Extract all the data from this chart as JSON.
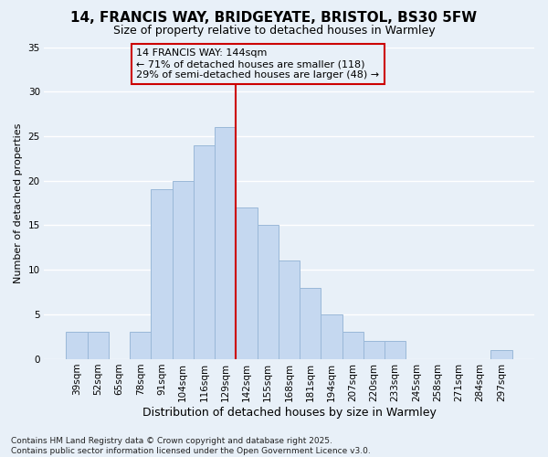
{
  "title1": "14, FRANCIS WAY, BRIDGEYATE, BRISTOL, BS30 5FW",
  "title2": "Size of property relative to detached houses in Warmley",
  "xlabel": "Distribution of detached houses by size in Warmley",
  "ylabel": "Number of detached properties",
  "annotation_line1": "14 FRANCIS WAY: 144sqm",
  "annotation_line2": "← 71% of detached houses are smaller (118)",
  "annotation_line3": "29% of semi-detached houses are larger (48) →",
  "footer": "Contains HM Land Registry data © Crown copyright and database right 2025.\nContains public sector information licensed under the Open Government Licence v3.0.",
  "bin_labels": [
    "39sqm",
    "52sqm",
    "65sqm",
    "78sqm",
    "91sqm",
    "104sqm",
    "116sqm",
    "129sqm",
    "142sqm",
    "155sqm",
    "168sqm",
    "181sqm",
    "194sqm",
    "207sqm",
    "220sqm",
    "233sqm",
    "245sqm",
    "258sqm",
    "271sqm",
    "284sqm",
    "297sqm"
  ],
  "values": [
    3,
    3,
    0,
    3,
    19,
    20,
    24,
    26,
    17,
    15,
    11,
    8,
    5,
    3,
    2,
    2,
    0,
    0,
    0,
    0,
    1
  ],
  "bar_color": "#c5d8f0",
  "bar_edge_color": "#9ab8d8",
  "highlight_bin_index": 8,
  "highlight_line_color": "#cc0000",
  "box_color": "#cc0000",
  "ylim": [
    0,
    35
  ],
  "yticks": [
    0,
    5,
    10,
    15,
    20,
    25,
    30,
    35
  ],
  "background_color": "#e8f0f8",
  "grid_color": "#ffffff",
  "title1_fontsize": 11,
  "title2_fontsize": 9,
  "xlabel_fontsize": 9,
  "ylabel_fontsize": 8,
  "tick_fontsize": 7.5,
  "ann_fontsize": 8,
  "footer_fontsize": 6.5
}
